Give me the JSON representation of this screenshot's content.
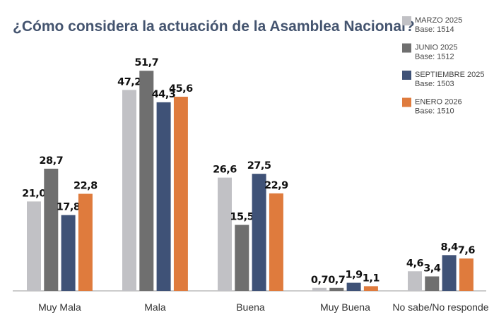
{
  "chart_data": {
    "type": "bar",
    "title": "¿Cómo considera la actuación de la Asamblea Nacional?",
    "categories": [
      "Muy Mala",
      "Mala",
      "Buena",
      "Muy Buena",
      "No sabe/No responde"
    ],
    "series": [
      {
        "name": "MARZO 2025",
        "base": "Base: 1514",
        "color": "#c1c1c5",
        "values": [
          21.0,
          47.2,
          26.6,
          0.7,
          4.6
        ],
        "labels": [
          "21,0",
          "47,2",
          "26,6",
          "0,7",
          "4,6"
        ]
      },
      {
        "name": "JUNIO 2025",
        "base": "Base: 1512",
        "color": "#6f6f6f",
        "values": [
          28.7,
          51.7,
          15.5,
          0.7,
          3.4
        ],
        "labels": [
          "28,7",
          "51,7",
          "15,5",
          "0,7",
          "3,4"
        ]
      },
      {
        "name": "SEPTIEMBRE 2025",
        "base": "Base: 1503",
        "color": "#3f5277",
        "values": [
          17.8,
          44.3,
          27.5,
          1.9,
          8.4
        ],
        "labels": [
          "17,8",
          "44,3",
          "27,5",
          "1,9",
          "8,4"
        ]
      },
      {
        "name": "ENERO 2026",
        "base": "Base: 1510",
        "color": "#df7b3d",
        "values": [
          22.8,
          45.6,
          22.9,
          1.1,
          7.6
        ],
        "labels": [
          "22,8",
          "45,6",
          "22,9",
          "1,1",
          "7,6"
        ]
      }
    ],
    "legend_position": "top-right",
    "grid": false
  }
}
